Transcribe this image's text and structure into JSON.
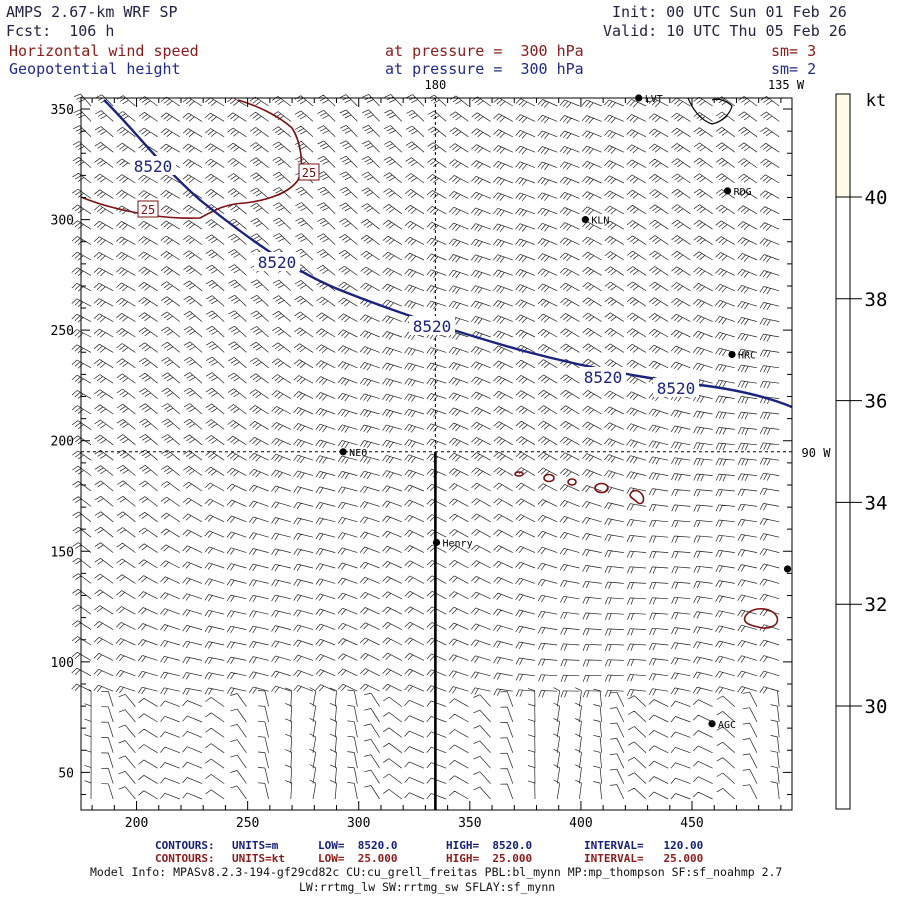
{
  "header": {
    "model": "AMPS 2.67-km WRF SP",
    "forecast": "Fcst:  106 h",
    "init": "Init: 00 UTC Sun 01 Feb 26",
    "valid": "Valid: 10 UTC Thu 05 Feb 26",
    "field1": {
      "name": "Horizontal wind speed",
      "level": "at pressure =  300 hPa",
      "smoothing": "sm= 3"
    },
    "field2": {
      "name": "Geopotential height",
      "level": "at pressure =  300 hPa",
      "smoothing": "sm= 2"
    }
  },
  "map": {
    "x_ticks": [
      "200",
      "250",
      "300",
      "350",
      "400",
      "450"
    ],
    "y_ticks": [
      "50",
      "100",
      "150",
      "200",
      "250",
      "300",
      "350"
    ],
    "x_range": [
      175,
      495
    ],
    "y_range": [
      33,
      355
    ],
    "graticule_labels": {
      "top_180": "180",
      "top_135w": "135 W",
      "right_90w": "90 W"
    },
    "graticule": {
      "meridian_x": 334.5,
      "parallel_y": 195
    },
    "cross_section": {
      "x": 334.5,
      "y_from": 33,
      "y_to": 195
    },
    "height_contour_label": "8520",
    "wind_contour_label": "25",
    "stations": [
      {
        "name": "LVT",
        "x": 426,
        "y": 355
      },
      {
        "name": "RDG",
        "x": 466,
        "y": 313
      },
      {
        "name": "KLN",
        "x": 402,
        "y": 300
      },
      {
        "name": "HRC",
        "x": 468,
        "y": 239
      },
      {
        "name": "NEO",
        "x": 293,
        "y": 195
      },
      {
        "name": "Henry",
        "x": 335,
        "y": 154
      },
      {
        "name": "AGC",
        "x": 459,
        "y": 72
      },
      {
        "name": "",
        "x": 493,
        "y": 142
      }
    ]
  },
  "colorbar": {
    "unit": "kt",
    "ticks": [
      "40",
      "38",
      "36",
      "34",
      "32",
      "30"
    ],
    "fill_color": "#fffbe6"
  },
  "footer": {
    "height_contours": {
      "label": "CONTOURS:",
      "units": "UNITS=m",
      "low": "LOW=  8520.0",
      "high": "HIGH=  8520.0",
      "interval": "INTERVAL=   120.00"
    },
    "wind_contours": {
      "label": "CONTOURS:",
      "units": "UNITS=kt",
      "low": "LOW=  25.000",
      "high": "HIGH=  25.000",
      "interval": "INTERVAL=   25.000"
    },
    "model_info_1": "Model Info: MPASv8.2.3-194-gf29cd82c CU:cu_grell_freitas PBL:bl_mynn MP:mp_thompson SF:sf_noahmp 2.7",
    "model_info_2": "LW:rrtmg_lw SW:rrtmg_sw SFLAY:sf_mynn"
  },
  "colors": {
    "height_contour": "#1a237e",
    "wind_contour": "#7b1010",
    "barbs": "#222222"
  }
}
